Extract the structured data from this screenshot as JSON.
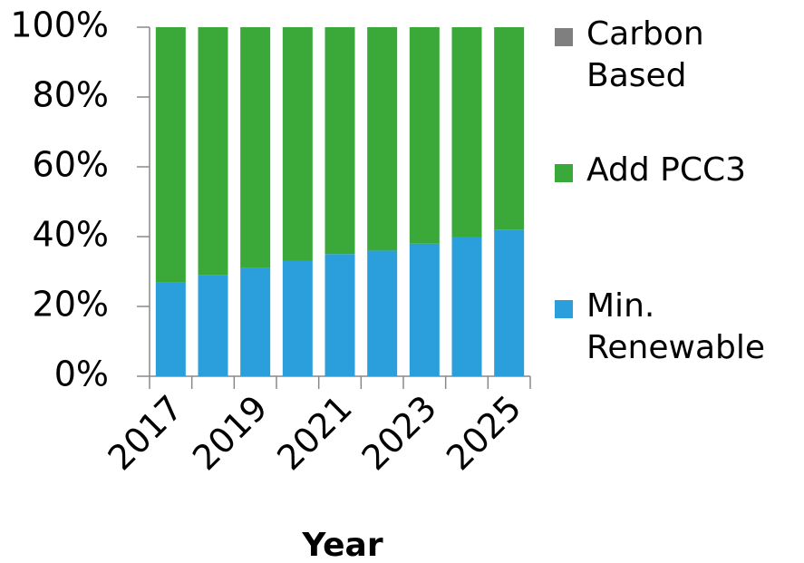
{
  "chart_data": {
    "type": "bar",
    "stacked": true,
    "categories": [
      "2017",
      null,
      "2019",
      null,
      "2021",
      null,
      "2023",
      null,
      "2025"
    ],
    "series": [
      {
        "name": "Min. Renewable",
        "color": "#2a9fdc",
        "values": [
          27,
          29,
          31,
          33,
          35,
          36,
          38,
          40,
          42
        ]
      },
      {
        "name": "Add PCC3",
        "color": "#3aa93a",
        "values": [
          73,
          71,
          69,
          67,
          65,
          64,
          62,
          60,
          58
        ]
      },
      {
        "name": "Carbon Based",
        "color": "#7f7f80",
        "values": [
          0,
          0,
          0,
          0,
          0,
          0,
          0,
          0,
          0
        ]
      }
    ],
    "xlabel": "Year",
    "ylim": [
      0,
      100
    ],
    "yticks": [
      {
        "value": 0,
        "label": "0%"
      },
      {
        "value": 20,
        "label": "20%"
      },
      {
        "value": 40,
        "label": "40%"
      },
      {
        "value": 60,
        "label": "60%"
      },
      {
        "value": 80,
        "label": "80%"
      },
      {
        "value": 100,
        "label": "100%"
      }
    ],
    "legend": "right"
  }
}
